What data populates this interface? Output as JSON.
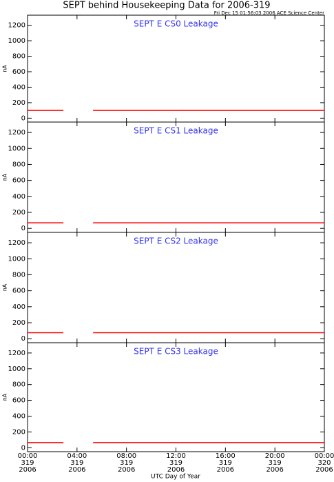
{
  "title": "SEPT behind Housekeeping Data for 2006-319",
  "subtitle": "Fri Dec 15 01:56:03 2006 ACE Science Center",
  "x_label": "UTC Day of Year",
  "xlim": [
    0,
    24
  ],
  "xticks": [
    {
      "value": 0,
      "label": [
        "00:00",
        "319",
        "2006"
      ]
    },
    {
      "value": 4,
      "label": [
        "04:00",
        "319",
        "2006"
      ]
    },
    {
      "value": 8,
      "label": [
        "08:00",
        "319",
        "2006"
      ]
    },
    {
      "value": 12,
      "label": [
        "12:00",
        "319",
        "2006"
      ]
    },
    {
      "value": 16,
      "label": [
        "16:00",
        "319",
        "2006"
      ]
    },
    {
      "value": 20,
      "label": [
        "20:00",
        "319",
        "2006"
      ]
    },
    {
      "value": 24,
      "label": [
        "00:00",
        "320",
        "2006"
      ]
    }
  ],
  "chart_data": [
    {
      "type": "line",
      "title": "SEPT E CS0 Leakage",
      "y_label": "nA",
      "ylim": [
        -50,
        1330
      ],
      "yticks": [
        0,
        200,
        400,
        600,
        800,
        1000,
        1200
      ],
      "x": [
        0,
        2.9,
        4,
        5.3,
        24
      ],
      "values": [
        100,
        100,
        null,
        100,
        100
      ],
      "color": "#ff0000"
    },
    {
      "type": "line",
      "title": "SEPT E CS1 Leakage",
      "y_label": "nA",
      "ylim": [
        -50,
        1330
      ],
      "yticks": [
        0,
        200,
        400,
        600,
        800,
        1000,
        1200
      ],
      "x": [
        0,
        2.9,
        4,
        5.3,
        24
      ],
      "values": [
        70,
        70,
        null,
        70,
        70
      ],
      "color": "#ff0000"
    },
    {
      "type": "line",
      "title": "SEPT E CS2 Leakage",
      "y_label": "nA",
      "ylim": [
        -50,
        1330
      ],
      "yticks": [
        0,
        200,
        400,
        600,
        800,
        1000,
        1200
      ],
      "x": [
        0,
        2.9,
        4,
        5.3,
        24
      ],
      "values": [
        75,
        75,
        null,
        75,
        75
      ],
      "color": "#ff0000"
    },
    {
      "type": "line",
      "title": "SEPT E CS3 Leakage",
      "y_label": "nA",
      "ylim": [
        -50,
        1330
      ],
      "yticks": [
        0,
        200,
        400,
        600,
        800,
        1000,
        1200
      ],
      "x": [
        0,
        2.9,
        4,
        5.3,
        24
      ],
      "values": [
        65,
        65,
        null,
        65,
        65
      ],
      "color": "#ff0000"
    }
  ]
}
